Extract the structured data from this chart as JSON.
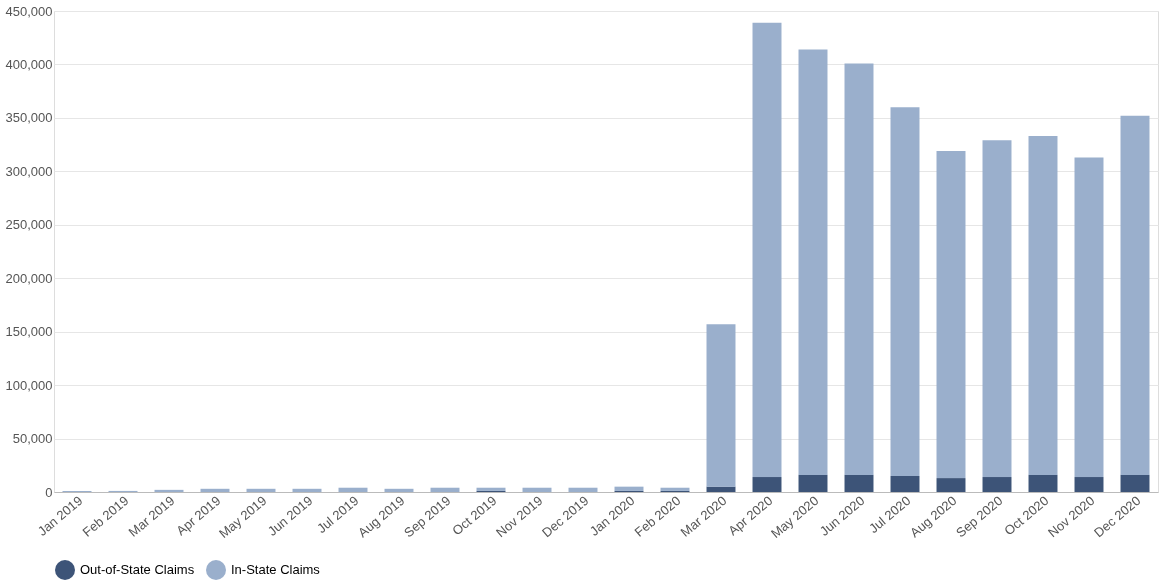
{
  "chart_data": {
    "type": "bar",
    "stacked": true,
    "categories": [
      "Jan 2019",
      "Feb 2019",
      "Mar 2019",
      "Apr 2019",
      "May 2019",
      "Jun 2019",
      "Jul 2019",
      "Aug 2019",
      "Sep 2019",
      "Oct 2019",
      "Nov 2019",
      "Dec 2019",
      "Jan 2020",
      "Feb 2020",
      "Mar 2020",
      "Apr 2020",
      "May 2020",
      "Jun 2020",
      "Jul 2020",
      "Aug 2020",
      "Sep 2020",
      "Oct 2020",
      "Nov 2020",
      "Dec 2020"
    ],
    "series": [
      {
        "name": "Out-of-State Claims",
        "color": "#3d5478",
        "values": [
          0,
          0,
          0,
          0,
          0,
          0,
          0,
          0,
          0,
          1000,
          0,
          0,
          1000,
          1000,
          5000,
          14000,
          16000,
          16000,
          15000,
          13000,
          14000,
          16000,
          14000,
          16000
        ]
      },
      {
        "name": "In-State Claims",
        "color": "#9aafcc",
        "values": [
          1000,
          1000,
          2000,
          3000,
          3000,
          3000,
          4000,
          3000,
          4000,
          3000,
          4000,
          4000,
          4000,
          3000,
          152000,
          425000,
          398000,
          385000,
          345000,
          306000,
          315000,
          317000,
          299000,
          336000
        ]
      }
    ],
    "ylim": [
      0,
      450000
    ],
    "yticks": [
      0,
      {
        "value": 50000,
        "label": "50,000"
      },
      {
        "value": 100000,
        "label": "100,000"
      },
      {
        "value": 150000,
        "label": "150,000"
      },
      {
        "value": 200000,
        "label": "200,000"
      },
      {
        "value": 250000,
        "label": "250,000"
      },
      {
        "value": 300000,
        "label": "300,000"
      },
      {
        "value": 350000,
        "label": "350,000"
      },
      {
        "value": 400000,
        "label": "400,000"
      },
      {
        "value": 450000,
        "label": "450,000"
      }
    ],
    "grid": "y",
    "legend": "bottom"
  }
}
